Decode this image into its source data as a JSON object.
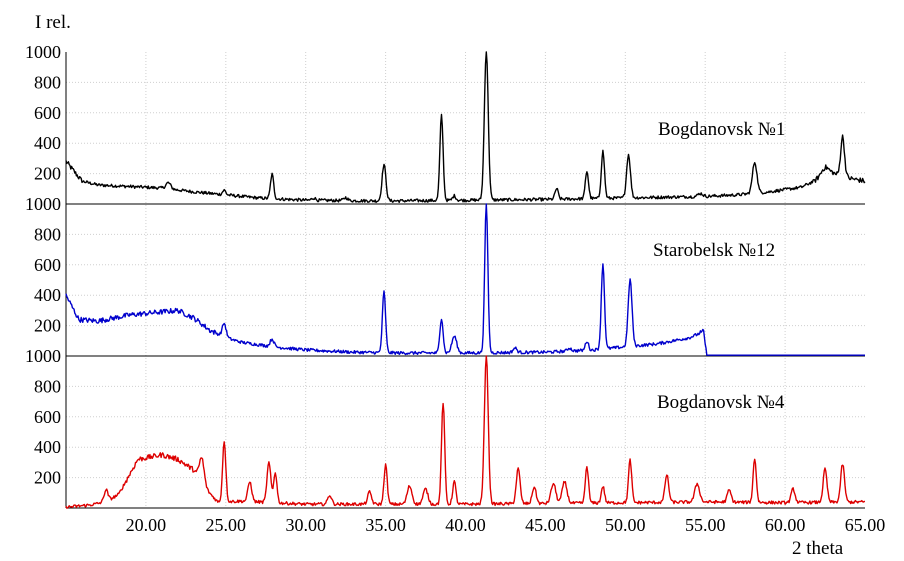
{
  "chart_data": {
    "type": "line",
    "ylabel": "I rel.",
    "xlabel": "2 theta",
    "xlim": [
      15.0,
      65.0
    ],
    "ylim": [
      0,
      1000
    ],
    "x_ticks": [
      20,
      25,
      30,
      35,
      40,
      45,
      50,
      55,
      60,
      65
    ],
    "x_tick_labels": [
      "20.00",
      "25.00",
      "30.00",
      "35.00",
      "40.00",
      "45.00",
      "50.00",
      "55.00",
      "60.00",
      "65.00"
    ],
    "y_ticks": [
      200,
      400,
      600,
      800,
      1000
    ],
    "y_tick_labels": [
      "200",
      "400",
      "600",
      "800",
      "1000"
    ],
    "grid": true,
    "panels": [
      {
        "name": "Bogdanovsk №1",
        "color": "#000000",
        "baseline": [
          [
            15,
            280
          ],
          [
            16,
            150
          ],
          [
            17,
            125
          ],
          [
            19,
            115
          ],
          [
            21,
            105
          ],
          [
            23,
            80
          ],
          [
            25,
            60
          ],
          [
            27,
            40
          ],
          [
            30,
            25
          ],
          [
            35,
            20
          ],
          [
            40,
            25
          ],
          [
            45,
            30
          ],
          [
            50,
            40
          ],
          [
            55,
            50
          ],
          [
            57,
            60
          ],
          [
            59,
            80
          ],
          [
            61,
            110
          ],
          [
            62,
            160
          ],
          [
            63,
            200
          ],
          [
            64,
            170
          ],
          [
            65,
            150
          ]
        ],
        "peaks": [
          [
            21.4,
            40,
            0.15
          ],
          [
            24.9,
            30,
            0.1
          ],
          [
            27.9,
            160,
            0.1
          ],
          [
            30.5,
            15,
            0.12
          ],
          [
            32.5,
            20,
            0.12
          ],
          [
            34.9,
            240,
            0.12
          ],
          [
            38.5,
            560,
            0.1
          ],
          [
            39.3,
            30,
            0.1
          ],
          [
            41.3,
            985,
            0.12
          ],
          [
            45.7,
            70,
            0.1
          ],
          [
            47.6,
            180,
            0.1
          ],
          [
            48.6,
            310,
            0.1
          ],
          [
            50.2,
            285,
            0.12
          ],
          [
            54.7,
            20,
            0.15
          ],
          [
            58.1,
            205,
            0.14
          ],
          [
            62.5,
            60,
            0.25
          ],
          [
            63.6,
            260,
            0.12
          ]
        ]
      },
      {
        "name": "Starobelsk №12",
        "color": "#0000cc",
        "baseline": [
          [
            15,
            400
          ],
          [
            15.8,
            240
          ],
          [
            17,
            230
          ],
          [
            19,
            270
          ],
          [
            21,
            290
          ],
          [
            22,
            300
          ],
          [
            23,
            250
          ],
          [
            24,
            170
          ],
          [
            25,
            120
          ],
          [
            26,
            90
          ],
          [
            28,
            60
          ],
          [
            30,
            40
          ],
          [
            33,
            25
          ],
          [
            36,
            20
          ],
          [
            40,
            20
          ],
          [
            45,
            25
          ],
          [
            48,
            40
          ],
          [
            52,
            80
          ],
          [
            54,
            120
          ],
          [
            54.9,
            160
          ],
          [
            55.1,
            5
          ],
          [
            65,
            5
          ]
        ],
        "peaks": [
          [
            24.9,
            90,
            0.12
          ],
          [
            27.9,
            50,
            0.12
          ],
          [
            34.9,
            400,
            0.1
          ],
          [
            38.5,
            230,
            0.1
          ],
          [
            39.3,
            110,
            0.15
          ],
          [
            41.3,
            975,
            0.1
          ],
          [
            43.1,
            30,
            0.12
          ],
          [
            46.5,
            20,
            0.12
          ],
          [
            47.6,
            60,
            0.1
          ],
          [
            48.6,
            560,
            0.1
          ],
          [
            50.3,
            440,
            0.12
          ]
        ]
      },
      {
        "name": "Bogdanovsk №4",
        "color": "#dd0000",
        "baseline": [
          [
            15,
            5
          ],
          [
            16.5,
            20
          ],
          [
            17.5,
            40
          ],
          [
            18.3,
            90
          ],
          [
            19.5,
            320
          ],
          [
            21,
            350
          ],
          [
            22,
            320
          ],
          [
            23,
            250
          ],
          [
            23.8,
            120
          ],
          [
            24.5,
            40
          ],
          [
            26,
            45
          ],
          [
            30,
            25
          ],
          [
            35,
            25
          ],
          [
            40,
            25
          ],
          [
            45,
            30
          ],
          [
            50,
            35
          ],
          [
            55,
            40
          ],
          [
            60,
            35
          ],
          [
            65,
            40
          ]
        ],
        "peaks": [
          [
            17.5,
            80,
            0.12
          ],
          [
            23.5,
            160,
            0.15
          ],
          [
            24.9,
            400,
            0.1
          ],
          [
            26.5,
            130,
            0.12
          ],
          [
            27.7,
            260,
            0.12
          ],
          [
            28.1,
            200,
            0.1
          ],
          [
            31.5,
            60,
            0.12
          ],
          [
            34,
            80,
            0.12
          ],
          [
            35,
            260,
            0.1
          ],
          [
            36.5,
            120,
            0.15
          ],
          [
            37.5,
            100,
            0.15
          ],
          [
            38.6,
            670,
            0.1
          ],
          [
            39.3,
            150,
            0.1
          ],
          [
            41.3,
            980,
            0.12
          ],
          [
            43.3,
            230,
            0.12
          ],
          [
            44.3,
            110,
            0.12
          ],
          [
            45.5,
            130,
            0.15
          ],
          [
            46.2,
            140,
            0.15
          ],
          [
            47.6,
            240,
            0.1
          ],
          [
            48.6,
            110,
            0.1
          ],
          [
            50.3,
            280,
            0.1
          ],
          [
            52.6,
            180,
            0.12
          ],
          [
            54.5,
            120,
            0.15
          ],
          [
            56.5,
            80,
            0.12
          ],
          [
            58.1,
            290,
            0.1
          ],
          [
            60.5,
            90,
            0.12
          ],
          [
            62.5,
            220,
            0.12
          ],
          [
            63.6,
            250,
            0.12
          ]
        ]
      }
    ]
  }
}
